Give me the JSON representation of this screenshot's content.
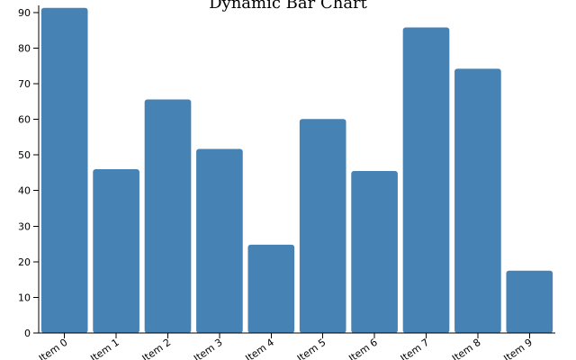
{
  "chart_data": {
    "type": "bar",
    "title": "Dynamic Bar Chart",
    "xlabel": "",
    "ylabel": "",
    "categories": [
      "Item 0",
      "Item 1",
      "Item 2",
      "Item 3",
      "Item 4",
      "Item 5",
      "Item 6",
      "Item 7",
      "Item 8",
      "Item 9"
    ],
    "values": [
      91.3,
      46,
      65.6,
      51.7,
      24.8,
      60.1,
      45.5,
      85.8,
      74.2,
      17.5
    ],
    "ylim": [
      0,
      92
    ],
    "yticks": [
      0,
      10,
      20,
      30,
      40,
      50,
      60,
      70,
      80,
      90
    ],
    "bar_color": "#4682B4",
    "grid": false,
    "legend": "none"
  }
}
